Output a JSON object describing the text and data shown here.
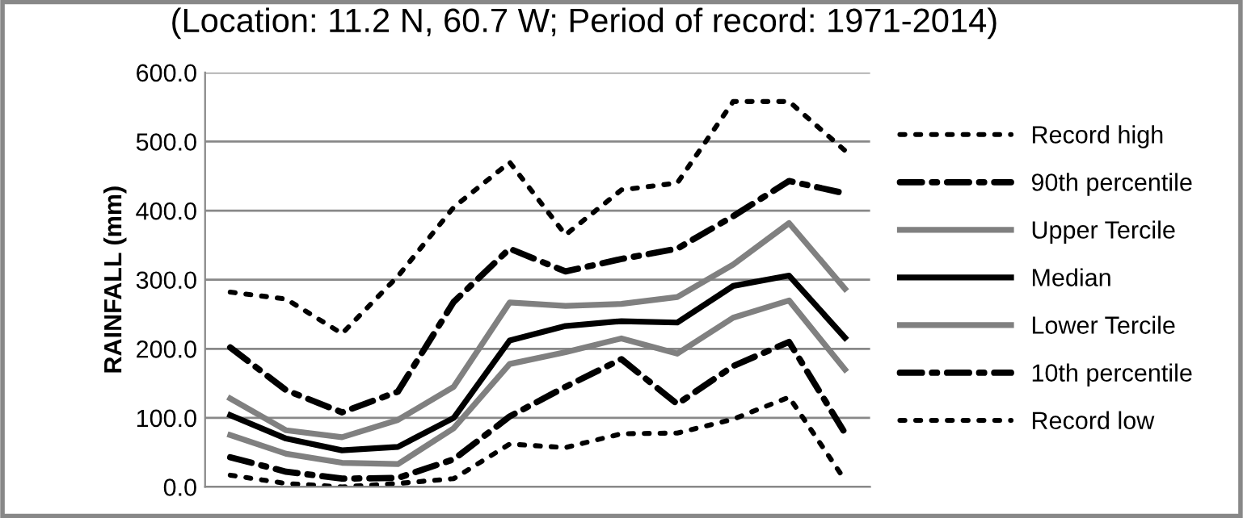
{
  "chart_data": {
    "type": "line",
    "title": "(Location: 11.2 N, 60.7 W; Period of record: 1971-2014)",
    "ylabel": "RAINFALL (mm)",
    "categories": [
      null,
      null,
      null,
      null,
      null,
      null,
      null,
      null,
      null,
      null,
      null,
      null
    ],
    "series": [
      {
        "name": "Record high",
        "color": "#000000",
        "line_style": "dotted",
        "values": [
          282,
          272,
          222,
          305,
          405,
          470,
          365,
          430,
          440,
          558,
          558,
          487
        ]
      },
      {
        "name": "90th percentile",
        "color": "#000000",
        "line_style": "dashdot",
        "values": [
          202,
          140,
          108,
          138,
          268,
          345,
          312,
          330,
          345,
          392,
          443,
          425
        ]
      },
      {
        "name": "Upper Tercile",
        "color": "#808080",
        "line_style": "solid",
        "values": [
          128,
          82,
          72,
          97,
          145,
          267,
          262,
          265,
          275,
          322,
          382,
          287
        ]
      },
      {
        "name": "Median",
        "color": "#000000",
        "line_style": "solid",
        "values": [
          104,
          70,
          53,
          58,
          100,
          212,
          233,
          240,
          238,
          291,
          306,
          216
        ]
      },
      {
        "name": "Lower Tercile",
        "color": "#808080",
        "line_style": "solid",
        "values": [
          75,
          48,
          35,
          33,
          85,
          178,
          195,
          215,
          193,
          245,
          270,
          170
        ]
      },
      {
        "name": "10th percentile",
        "color": "#000000",
        "line_style": "dashdot",
        "values": [
          43,
          22,
          12,
          13,
          40,
          102,
          145,
          185,
          120,
          175,
          210,
          78
        ]
      },
      {
        "name": "Record low",
        "color": "#000000",
        "line_style": "dotted",
        "values": [
          17,
          5,
          0,
          5,
          12,
          62,
          57,
          77,
          78,
          98,
          130,
          10
        ]
      }
    ],
    "ylim": [
      0,
      600
    ],
    "yticks": [
      {
        "value": 0,
        "label": "0.0"
      },
      {
        "value": 100,
        "label": "100.0"
      },
      {
        "value": 200,
        "label": "200.0"
      },
      {
        "value": 300,
        "label": "300.0"
      },
      {
        "value": 400,
        "label": "400.0"
      },
      {
        "value": 500,
        "label": "500.0"
      },
      {
        "value": 600,
        "label": "600.0"
      }
    ],
    "grid": "y",
    "legend": "right",
    "tick_labels": "y"
  }
}
